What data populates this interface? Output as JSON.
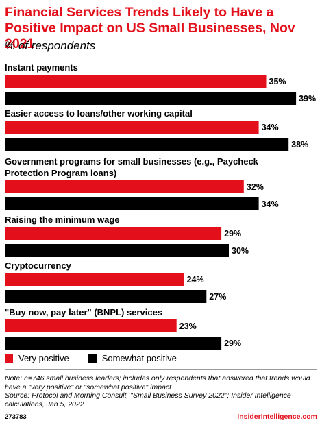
{
  "header": {
    "title": "Financial Services Trends Likely to Have a Positive Impact on US Small Businesses, Nov 2021",
    "subtitle": "% of respondents"
  },
  "chart_data": {
    "type": "bar",
    "orientation": "horizontal",
    "categories": [
      "Instant payments",
      "Easier access to loans/other working capital",
      "Government programs for small businesses (e.g., Paycheck Protection Program loans)",
      "Raising the minimum wage",
      "Cryptocurrency",
      "\"Buy now, pay later\" (BNPL) services"
    ],
    "series": [
      {
        "name": "Very positive",
        "color": "#e3101b",
        "values": [
          35,
          34,
          32,
          29,
          24,
          23
        ]
      },
      {
        "name": "Somewhat positive",
        "color": "#000000",
        "values": [
          39,
          38,
          34,
          30,
          27,
          29
        ]
      }
    ],
    "value_suffix": "%",
    "xlim": [
      0,
      39
    ],
    "grid": false,
    "legend_position": "bottom-left"
  },
  "legend": {
    "very_positive": "Very positive",
    "somewhat_positive": "Somewhat positive"
  },
  "footer": {
    "note": "Note: n=746 small business leaders; includes only respondents that answered that trends would have a \"very positive\" or \"somewhat positive\" impact",
    "source": "Source: Protocol and Morning Consult, \"Small Business Survey 2022\"; Insider Intelligence calculations, Jan 5, 2022",
    "chart_id": "273783",
    "brand": "InsiderIntelligence.com"
  }
}
